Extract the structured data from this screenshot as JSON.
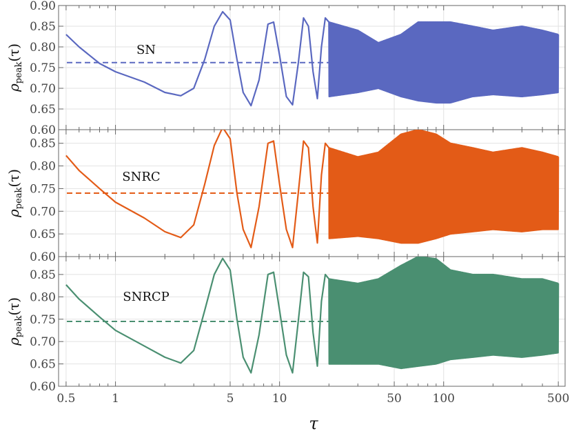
{
  "chart_data": {
    "type": "line",
    "x_scale": "log",
    "xlim": [
      0.45,
      550
    ],
    "x_ticks": [
      0.5,
      1,
      5,
      10,
      50,
      100,
      500
    ],
    "x_tick_labels": [
      "0.5",
      "1",
      "5",
      "10",
      "50",
      "100",
      "500"
    ],
    "xlabel": "τ",
    "ylabel_main": "ρ",
    "ylabel_sub": "peak",
    "ylabel_arg": "(τ)",
    "grid": true,
    "panels": [
      {
        "label": "SN",
        "color": "#5a68c0",
        "ylim": [
          0.6,
          0.9
        ],
        "y_ticks": [
          0.6,
          0.65,
          0.7,
          0.75,
          0.8,
          0.85,
          0.9
        ],
        "y_tick_labels": [
          "0.60",
          "0.65",
          "0.70",
          "0.75",
          "0.80",
          "0.85",
          "0.90"
        ],
        "mean": 0.762,
        "series_points": [
          [
            0.5,
            0.83
          ],
          [
            0.6,
            0.8
          ],
          [
            0.8,
            0.76
          ],
          [
            1.0,
            0.74
          ],
          [
            1.5,
            0.715
          ],
          [
            2.0,
            0.69
          ],
          [
            2.5,
            0.682
          ],
          [
            3.0,
            0.7
          ],
          [
            3.5,
            0.77
          ],
          [
            4.0,
            0.85
          ],
          [
            4.5,
            0.885
          ],
          [
            5.0,
            0.865
          ],
          [
            5.5,
            0.77
          ],
          [
            6.0,
            0.69
          ],
          [
            6.7,
            0.658
          ],
          [
            7.5,
            0.72
          ],
          [
            8.5,
            0.855
          ],
          [
            9.2,
            0.86
          ],
          [
            10.0,
            0.78
          ],
          [
            11.0,
            0.68
          ],
          [
            12.0,
            0.66
          ],
          [
            13.0,
            0.76
          ],
          [
            14.0,
            0.87
          ],
          [
            15.0,
            0.85
          ],
          [
            16.0,
            0.74
          ],
          [
            17.0,
            0.675
          ],
          [
            18.0,
            0.8
          ],
          [
            19.0,
            0.87
          ]
        ],
        "envelope": {
          "x": [
            20,
            30,
            40,
            55,
            70,
            90,
            110,
            150,
            200,
            300,
            400,
            500
          ],
          "upper": [
            0.86,
            0.84,
            0.81,
            0.83,
            0.86,
            0.86,
            0.86,
            0.85,
            0.84,
            0.85,
            0.84,
            0.83
          ],
          "lower": [
            0.68,
            0.69,
            0.7,
            0.68,
            0.67,
            0.665,
            0.665,
            0.68,
            0.685,
            0.68,
            0.685,
            0.69
          ]
        }
      },
      {
        "label": "SNRC",
        "color": "#e35b17",
        "ylim": [
          0.6,
          0.88
        ],
        "y_ticks": [
          0.6,
          0.65,
          0.7,
          0.75,
          0.8,
          0.85
        ],
        "y_tick_labels": [
          "0.60",
          "0.65",
          "0.70",
          "0.75",
          "0.80",
          "0.85"
        ],
        "mean": 0.74,
        "series_points": [
          [
            0.5,
            0.823
          ],
          [
            0.6,
            0.79
          ],
          [
            0.8,
            0.75
          ],
          [
            1.0,
            0.72
          ],
          [
            1.5,
            0.685
          ],
          [
            2.0,
            0.655
          ],
          [
            2.5,
            0.642
          ],
          [
            3.0,
            0.67
          ],
          [
            3.5,
            0.76
          ],
          [
            4.0,
            0.845
          ],
          [
            4.5,
            0.885
          ],
          [
            5.0,
            0.86
          ],
          [
            5.5,
            0.74
          ],
          [
            6.0,
            0.66
          ],
          [
            6.7,
            0.62
          ],
          [
            7.5,
            0.71
          ],
          [
            8.5,
            0.85
          ],
          [
            9.2,
            0.855
          ],
          [
            10.0,
            0.76
          ],
          [
            11.0,
            0.66
          ],
          [
            12.0,
            0.62
          ],
          [
            13.0,
            0.74
          ],
          [
            14.0,
            0.855
          ],
          [
            15.0,
            0.84
          ],
          [
            16.0,
            0.71
          ],
          [
            17.0,
            0.63
          ],
          [
            18.0,
            0.78
          ],
          [
            19.0,
            0.85
          ]
        ],
        "envelope": {
          "x": [
            20,
            30,
            40,
            55,
            70,
            90,
            110,
            150,
            200,
            300,
            400,
            500
          ],
          "upper": [
            0.84,
            0.82,
            0.83,
            0.87,
            0.88,
            0.87,
            0.85,
            0.84,
            0.83,
            0.84,
            0.83,
            0.82
          ],
          "lower": [
            0.64,
            0.645,
            0.64,
            0.63,
            0.63,
            0.64,
            0.65,
            0.655,
            0.66,
            0.655,
            0.66,
            0.66
          ]
        }
      },
      {
        "label": "SNRCP",
        "color": "#4a8f71",
        "ylim": [
          0.6,
          0.89
        ],
        "y_ticks": [
          0.6,
          0.65,
          0.7,
          0.75,
          0.8,
          0.85
        ],
        "y_tick_labels": [
          "0.60",
          "0.65",
          "0.70",
          "0.75",
          "0.80",
          "0.85"
        ],
        "mean": 0.745,
        "series_points": [
          [
            0.5,
            0.827
          ],
          [
            0.6,
            0.795
          ],
          [
            0.8,
            0.755
          ],
          [
            1.0,
            0.725
          ],
          [
            1.5,
            0.69
          ],
          [
            2.0,
            0.665
          ],
          [
            2.5,
            0.652
          ],
          [
            3.0,
            0.68
          ],
          [
            3.5,
            0.77
          ],
          [
            4.0,
            0.85
          ],
          [
            4.5,
            0.886
          ],
          [
            5.0,
            0.86
          ],
          [
            5.5,
            0.75
          ],
          [
            6.0,
            0.665
          ],
          [
            6.7,
            0.63
          ],
          [
            7.5,
            0.715
          ],
          [
            8.5,
            0.85
          ],
          [
            9.2,
            0.855
          ],
          [
            10.0,
            0.77
          ],
          [
            11.0,
            0.67
          ],
          [
            12.0,
            0.63
          ],
          [
            13.0,
            0.745
          ],
          [
            14.0,
            0.855
          ],
          [
            15.0,
            0.845
          ],
          [
            16.0,
            0.72
          ],
          [
            17.0,
            0.645
          ],
          [
            18.0,
            0.79
          ],
          [
            19.0,
            0.85
          ]
        ],
        "envelope": {
          "x": [
            20,
            30,
            40,
            55,
            70,
            90,
            110,
            150,
            200,
            300,
            400,
            500
          ],
          "upper": [
            0.84,
            0.83,
            0.84,
            0.87,
            0.89,
            0.885,
            0.86,
            0.85,
            0.85,
            0.84,
            0.84,
            0.83
          ],
          "lower": [
            0.65,
            0.65,
            0.65,
            0.64,
            0.645,
            0.65,
            0.66,
            0.665,
            0.67,
            0.665,
            0.67,
            0.675
          ]
        }
      }
    ]
  }
}
